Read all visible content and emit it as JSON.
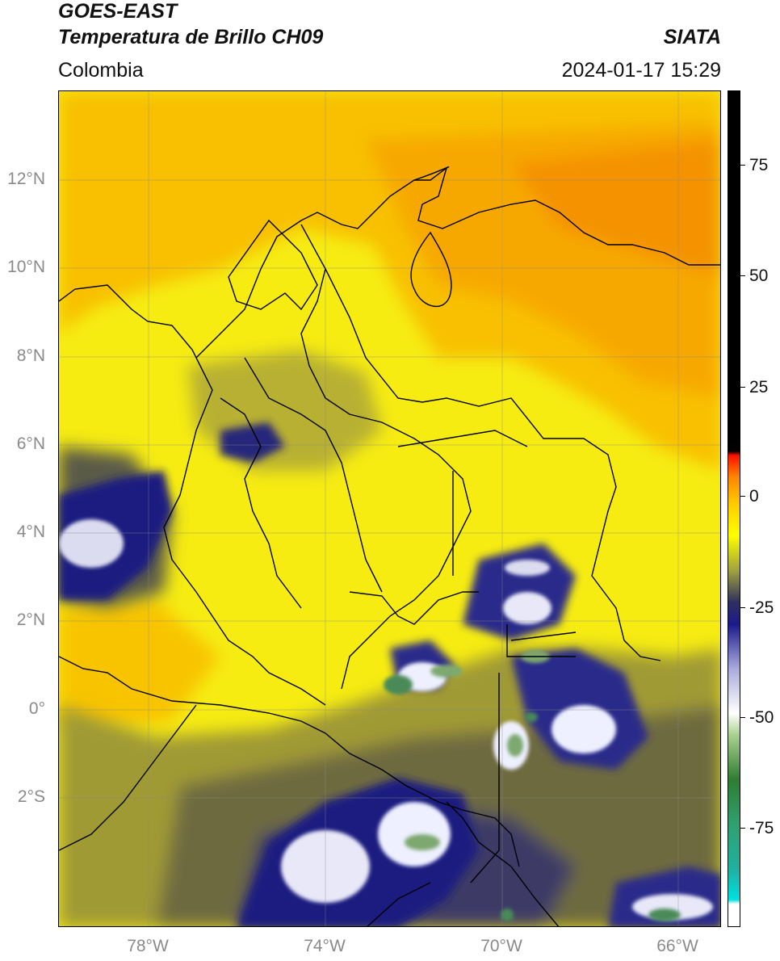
{
  "header": {
    "title_line1": "GOES-EAST",
    "title_line2": "Temperatura de Brillo CH09",
    "organization": "SIATA",
    "region": "Colombia",
    "timestamp": "2024-01-17 15:29"
  },
  "axes": {
    "lat_labels": [
      "12°N",
      "10°N",
      "8°N",
      "6°N",
      "4°N",
      "2°N",
      "0°",
      "2°S"
    ],
    "lon_labels": [
      "78°W",
      "74°W",
      "70°W",
      "66°W"
    ]
  },
  "colorbar": {
    "ticks": [
      "75",
      "50",
      "25",
      "0",
      "-25",
      "-50",
      "-75"
    ],
    "stops": [
      {
        "v": -98,
        "color": "#ffffff"
      },
      {
        "v": -93,
        "color": "#ffffff"
      },
      {
        "v": -92,
        "color": "#00e0e0"
      },
      {
        "v": -85,
        "color": "#20b0a0"
      },
      {
        "v": -75,
        "color": "#30a070"
      },
      {
        "v": -65,
        "color": "#2e7d32"
      },
      {
        "v": -55,
        "color": "#a9d08e"
      },
      {
        "v": -50,
        "color": "#ffffff"
      },
      {
        "v": -40,
        "color": "#aaaadd"
      },
      {
        "v": -30,
        "color": "#1a1a8c"
      },
      {
        "v": -25,
        "color": "#303060"
      },
      {
        "v": -22,
        "color": "#606050"
      },
      {
        "v": -18,
        "color": "#a0a040"
      },
      {
        "v": -10,
        "color": "#ffff00"
      },
      {
        "v": -3,
        "color": "#ffcc00"
      },
      {
        "v": 3,
        "color": "#ff8800"
      },
      {
        "v": 8,
        "color": "#ff1100"
      },
      {
        "v": 9,
        "color": "#000000"
      },
      {
        "v": 90,
        "color": "#000000"
      }
    ]
  },
  "colors": {
    "clear_yellow": "#f5ee10",
    "warm_orange": "#f8a800",
    "cloud_dark": "#5a5a48",
    "deep_blue": "#1c1c80",
    "cold_white": "#eef0ff",
    "green": "#5d8f5a"
  }
}
